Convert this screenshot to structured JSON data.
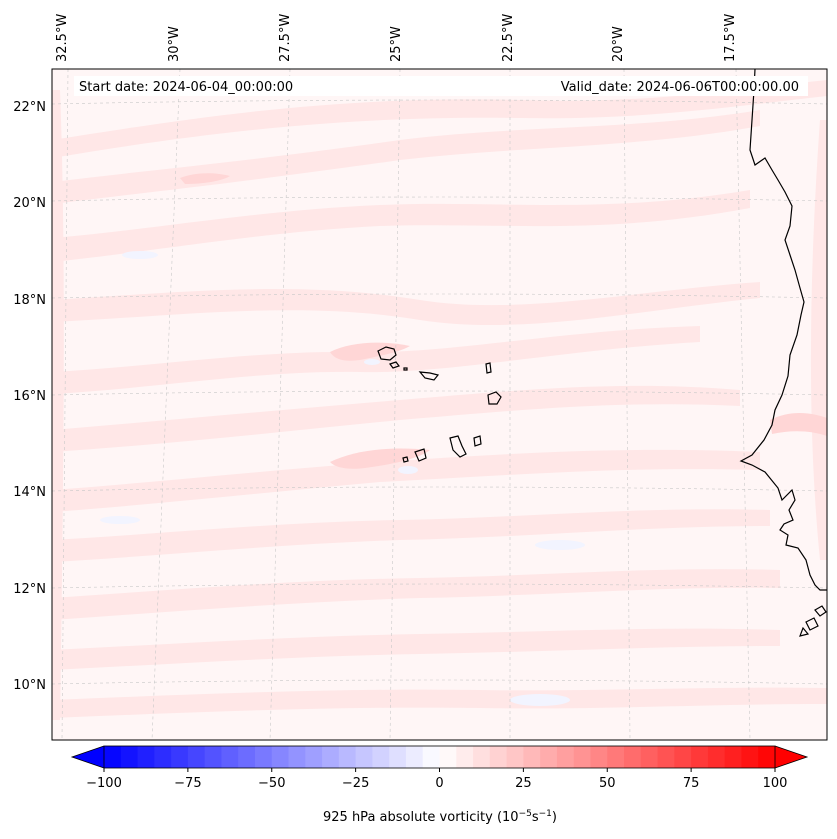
{
  "map": {
    "start_date": "Start date: 2024-06-04_00:00:00",
    "valid_date": "Valid_date: 2024-06-06T00:00:00.00",
    "lon_labels": [
      "32.5°W",
      "30°W",
      "27.5°W",
      "25°W",
      "22.5°W",
      "20°W",
      "17.5°W"
    ],
    "lat_labels": [
      "22°N",
      "20°N",
      "18°N",
      "16°N",
      "14°N",
      "12°N",
      "10°N"
    ],
    "field": "925 hPa absolute vorticity",
    "unit_base": "10",
    "unit_exp1": "−5",
    "unit_mid": "s",
    "unit_exp2": "−1",
    "colors": {
      "negative_end": "#0000ff",
      "center": "#ffffff",
      "positive_end": "#ff0000",
      "background_field": "#fff6f6",
      "pink_band": "#ffe7e7",
      "pink_band_strong": "#ffd6d6",
      "blue_patch": "#f2f4ff",
      "coastline": "#000000",
      "gridline": "#c8c8c8"
    }
  },
  "colorbar": {
    "min": -100,
    "max": 100,
    "step": 5,
    "tick_labels": [
      "−100",
      "−75",
      "−50",
      "−25",
      "0",
      "25",
      "50",
      "75",
      "100"
    ],
    "tick_values": [
      -100,
      -75,
      -50,
      -25,
      0,
      25,
      50,
      75,
      100
    ],
    "extend": "both"
  }
}
